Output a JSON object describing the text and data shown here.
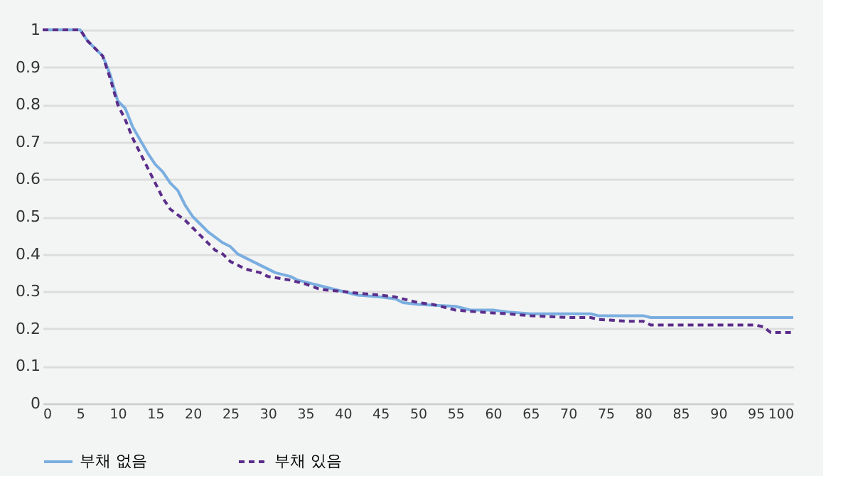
{
  "chart_data": {
    "type": "line",
    "legend": "bottom",
    "grid": "y",
    "marker": "none",
    "xlim": [
      0,
      100
    ],
    "xticks": [
      0,
      5,
      10,
      15,
      20,
      25,
      30,
      35,
      40,
      45,
      50,
      55,
      60,
      65,
      70,
      75,
      80,
      85,
      90,
      95,
      100
    ],
    "ylim": [
      0,
      1
    ],
    "yticks": [
      0,
      0.1,
      0.2,
      0.3,
      0.4,
      0.5,
      0.6,
      0.7,
      0.8,
      0.9,
      1
    ],
    "series": [
      {
        "name": "부채 없음",
        "color": "#7aaee0",
        "line_style": "solid",
        "x": [
          0,
          5,
          6,
          8,
          9,
          10,
          11,
          12,
          14,
          15,
          16,
          17,
          18,
          19,
          20,
          22,
          24,
          25,
          26,
          28,
          30,
          31,
          33,
          34,
          36,
          38,
          40,
          42,
          45,
          47,
          48,
          50,
          55,
          57,
          60,
          62,
          65,
          70,
          73,
          74,
          80,
          81,
          100
        ],
        "values": [
          1,
          1,
          0.97,
          0.93,
          0.88,
          0.81,
          0.79,
          0.74,
          0.67,
          0.64,
          0.62,
          0.59,
          0.57,
          0.53,
          0.5,
          0.46,
          0.43,
          0.42,
          0.4,
          0.38,
          0.36,
          0.35,
          0.34,
          0.33,
          0.32,
          0.31,
          0.3,
          0.29,
          0.285,
          0.28,
          0.27,
          0.265,
          0.26,
          0.25,
          0.25,
          0.245,
          0.24,
          0.24,
          0.24,
          0.235,
          0.235,
          0.23,
          0.23
        ]
      },
      {
        "name": "부채 있음",
        "color": "#5b2d8a",
        "line_style": "dashed",
        "x": [
          0,
          5,
          6,
          8,
          9,
          10,
          11,
          12,
          14,
          15,
          16,
          17,
          19,
          20,
          22,
          23,
          24,
          25,
          27,
          29,
          30,
          33,
          35,
          37,
          40,
          42,
          45,
          47,
          50,
          52,
          55,
          58,
          62,
          65,
          70,
          73,
          74,
          78,
          80,
          81,
          95,
          96,
          97,
          100
        ],
        "values": [
          1,
          1,
          0.97,
          0.93,
          0.87,
          0.8,
          0.76,
          0.71,
          0.63,
          0.59,
          0.55,
          0.52,
          0.49,
          0.47,
          0.43,
          0.41,
          0.4,
          0.38,
          0.36,
          0.35,
          0.34,
          0.33,
          0.32,
          0.305,
          0.3,
          0.295,
          0.29,
          0.285,
          0.27,
          0.265,
          0.25,
          0.245,
          0.24,
          0.235,
          0.23,
          0.23,
          0.225,
          0.22,
          0.22,
          0.21,
          0.21,
          0.205,
          0.19,
          0.19
        ]
      }
    ]
  }
}
